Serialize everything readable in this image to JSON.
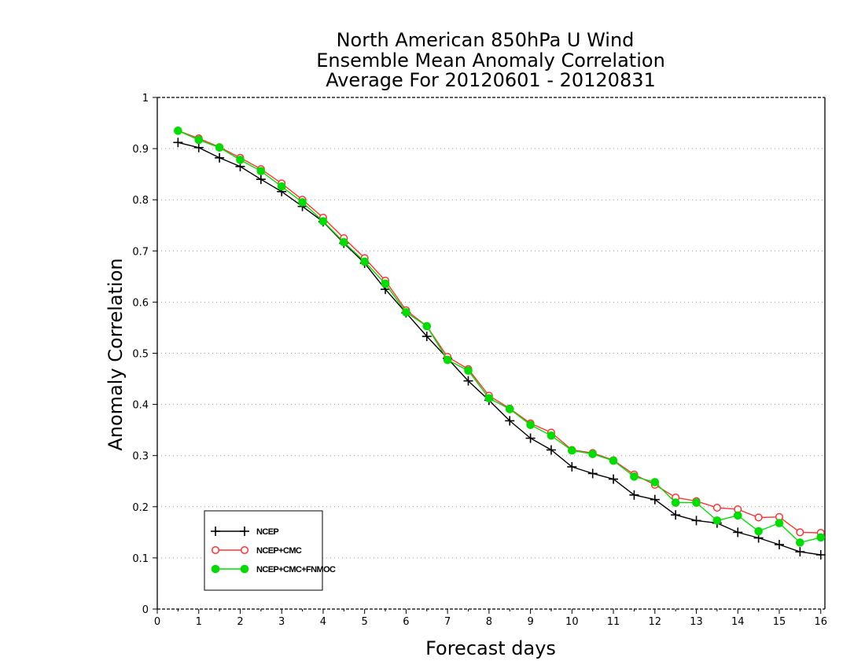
{
  "chart_data": {
    "type": "line",
    "title": [
      "North American 850hPa U Wind",
      "Ensemble Mean Anomaly Correlation",
      "Average For 20120601 - 20120831"
    ],
    "xlabel": "Forecast days",
    "ylabel": "Anomaly Correlation",
    "xlim": [
      0,
      16.1
    ],
    "ylim": [
      0,
      1
    ],
    "x_ticks": [
      "0",
      "1",
      "2",
      "3",
      "4",
      "5",
      "6",
      "7",
      "8",
      "9",
      "10",
      "11",
      "12",
      "13",
      "14",
      "15",
      "16"
    ],
    "y_ticks": [
      "0",
      "0.1",
      "0.2",
      "0.3",
      "0.4",
      "0.5",
      "0.6",
      "0.7",
      "0.8",
      "0.9",
      "1"
    ],
    "grid": "horizontal dotted",
    "legend_position": "bottom-left",
    "x": [
      0.5,
      1,
      1.5,
      2,
      2.5,
      3,
      3.5,
      4,
      4.5,
      5,
      5.5,
      6,
      6.5,
      7,
      7.5,
      8,
      8.5,
      9,
      9.5,
      10,
      10.5,
      11,
      11.5,
      12,
      12.5,
      13,
      13.5,
      14,
      14.5,
      15,
      15.5,
      16
    ],
    "series": [
      {
        "name": "NCEP",
        "color": "#000000",
        "marker": "plus",
        "values": [
          0.912,
          0.902,
          0.882,
          0.865,
          0.84,
          0.816,
          0.787,
          0.757,
          0.715,
          0.676,
          0.625,
          0.579,
          0.533,
          0.49,
          0.446,
          0.408,
          0.368,
          0.334,
          0.311,
          0.278,
          0.265,
          0.254,
          0.223,
          0.214,
          0.184,
          0.173,
          0.168,
          0.15,
          0.139,
          0.126,
          0.112,
          0.106
        ]
      },
      {
        "name": "NCEP+CMC",
        "color": "#ff3333",
        "marker": "open-circle",
        "values": [
          0.935,
          0.92,
          0.903,
          0.882,
          0.86,
          0.832,
          0.8,
          0.765,
          0.725,
          0.686,
          0.642,
          0.584,
          0.553,
          0.493,
          0.469,
          0.417,
          0.392,
          0.363,
          0.345,
          0.311,
          0.305,
          0.291,
          0.263,
          0.243,
          0.218,
          0.211,
          0.198,
          0.195,
          0.179,
          0.18,
          0.15,
          0.149
        ]
      },
      {
        "name": "NCEP+CMC+FNMOC",
        "color": "#00dd00",
        "marker": "filled-circle",
        "values": [
          0.935,
          0.917,
          0.902,
          0.878,
          0.856,
          0.826,
          0.795,
          0.758,
          0.717,
          0.679,
          0.636,
          0.58,
          0.553,
          0.487,
          0.466,
          0.412,
          0.391,
          0.36,
          0.339,
          0.31,
          0.303,
          0.29,
          0.259,
          0.248,
          0.208,
          0.208,
          0.173,
          0.183,
          0.152,
          0.168,
          0.13,
          0.14
        ]
      }
    ]
  }
}
